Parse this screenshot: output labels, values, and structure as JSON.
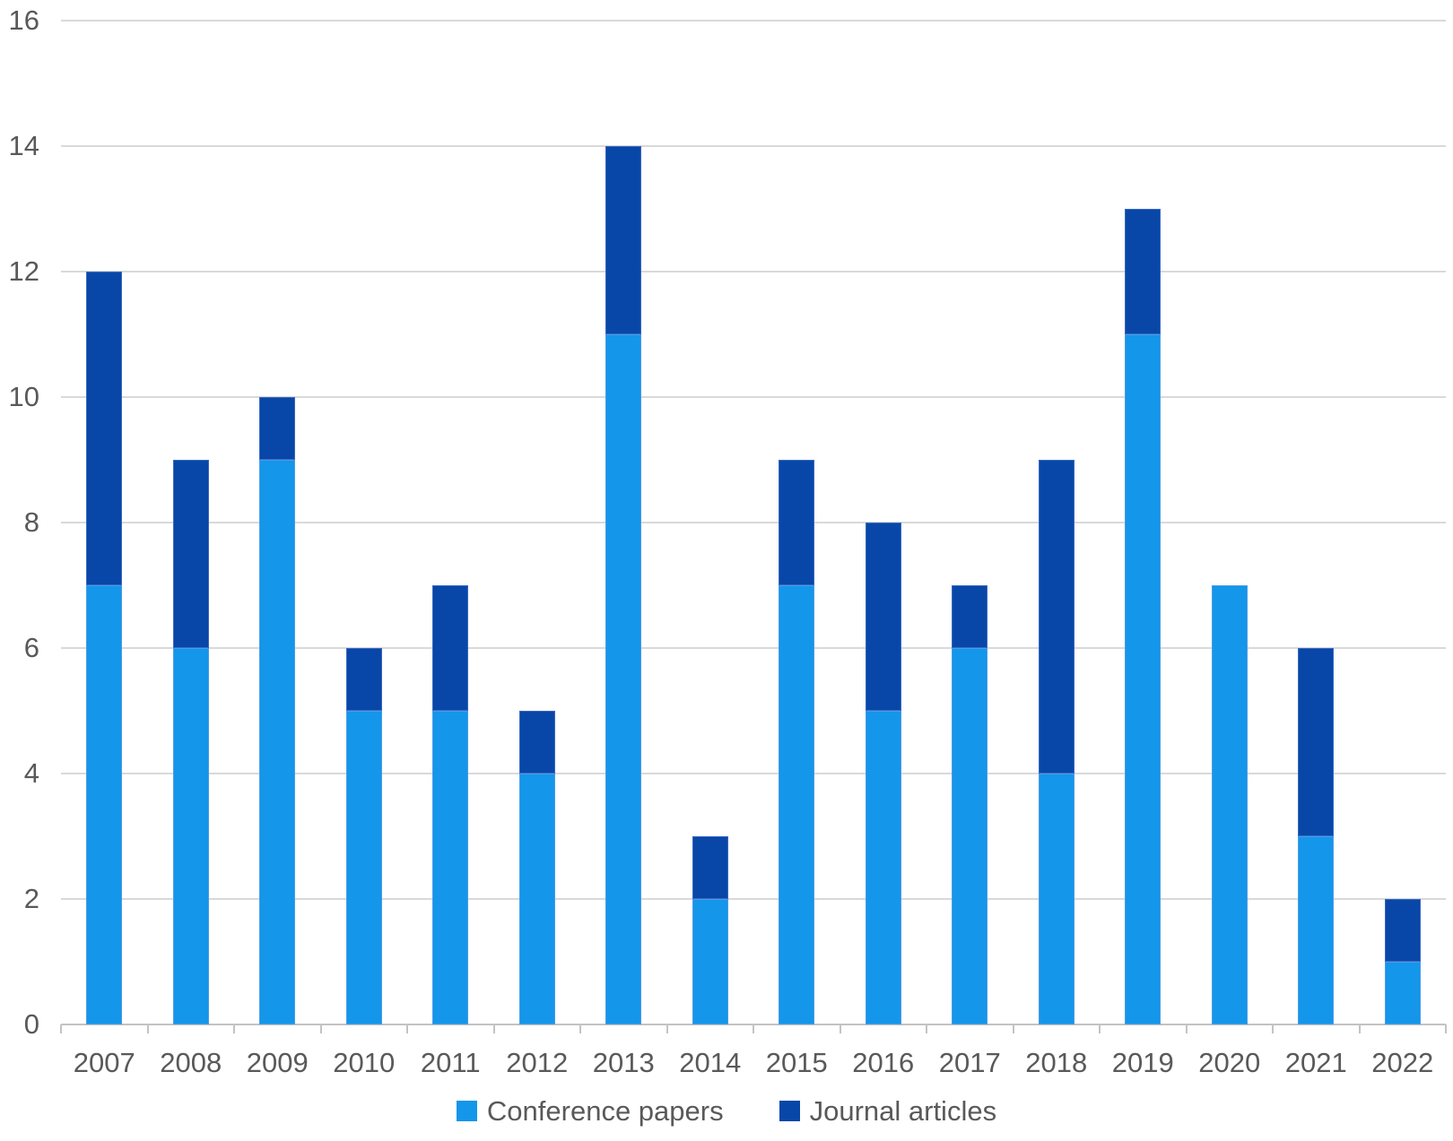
{
  "chart_data": {
    "type": "bar",
    "stacked": true,
    "title": "",
    "xlabel": "",
    "ylabel": "",
    "categories": [
      "2007",
      "2008",
      "2009",
      "2010",
      "2011",
      "2012",
      "2013",
      "2014",
      "2015",
      "2016",
      "2017",
      "2018",
      "2019",
      "2020",
      "2021",
      "2022"
    ],
    "series": [
      {
        "name": "Conference papers",
        "color": "#1496EA",
        "values": [
          7,
          6,
          9,
          5,
          5,
          4,
          11,
          2,
          7,
          5,
          6,
          4,
          11,
          7,
          3,
          1
        ]
      },
      {
        "name": "Journal articles",
        "color": "#0847A8",
        "values": [
          5,
          3,
          1,
          1,
          2,
          1,
          3,
          1,
          2,
          3,
          1,
          5,
          2,
          0,
          3,
          1
        ]
      }
    ],
    "totals": [
      12,
      9,
      10,
      6,
      7,
      5,
      14,
      3,
      9,
      8,
      7,
      9,
      13,
      7,
      6,
      2
    ],
    "ylim": [
      0,
      16
    ],
    "ytick_step": 2,
    "ytick_labels": [
      "0",
      "2",
      "4",
      "6",
      "8",
      "10",
      "12",
      "14",
      "16"
    ],
    "grid": true,
    "gridline_color": "#d9d9d9",
    "axis_text_color": "#595959",
    "legend_position": "bottom"
  }
}
